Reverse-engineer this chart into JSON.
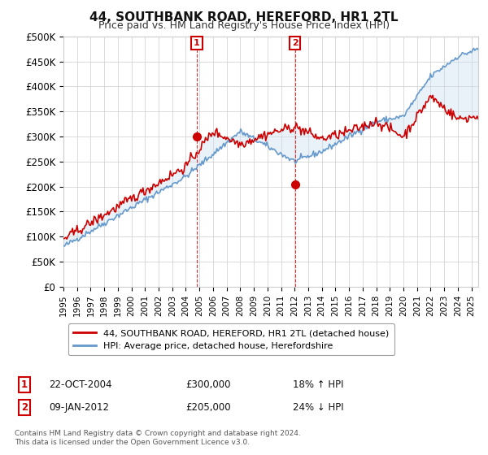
{
  "title": "44, SOUTHBANK ROAD, HEREFORD, HR1 2TL",
  "subtitle": "Price paid vs. HM Land Registry's House Price Index (HPI)",
  "ylabel_ticks": [
    "£0",
    "£50K",
    "£100K",
    "£150K",
    "£200K",
    "£250K",
    "£300K",
    "£350K",
    "£400K",
    "£450K",
    "£500K"
  ],
  "ylim": [
    0,
    500000
  ],
  "xlim_start": 1995.0,
  "xlim_end": 2025.5,
  "marker1_x": 2004.81,
  "marker1_y": 300000,
  "marker1_label": "1",
  "marker2_x": 2012.03,
  "marker2_y": 205000,
  "marker2_label": "2",
  "line1_color": "#cc0000",
  "line2_color": "#6699cc",
  "shaded_color": "#cce0f0",
  "legend_line1": "44, SOUTHBANK ROAD, HEREFORD, HR1 2TL (detached house)",
  "legend_line2": "HPI: Average price, detached house, Herefordshire",
  "table_row1": [
    "1",
    "22-OCT-2004",
    "£300,000",
    "18% ↑ HPI"
  ],
  "table_row2": [
    "2",
    "09-JAN-2012",
    "£205,000",
    "24% ↓ HPI"
  ],
  "footnote": "Contains HM Land Registry data © Crown copyright and database right 2024.\nThis data is licensed under the Open Government Licence v3.0.",
  "grid_color": "#cccccc",
  "background_color": "#ffffff"
}
